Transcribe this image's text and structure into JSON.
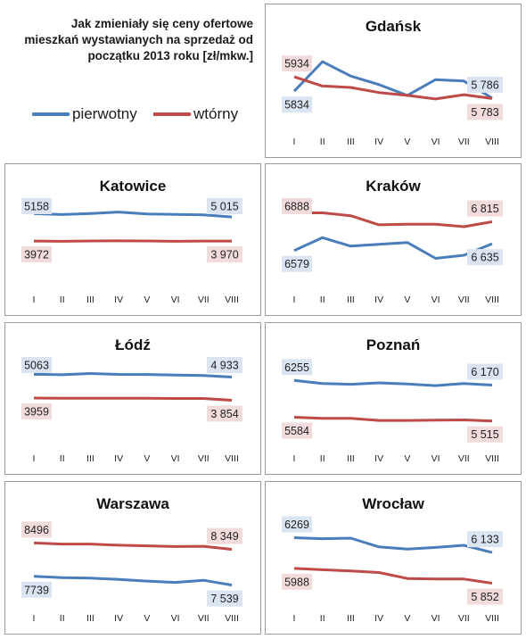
{
  "title": {
    "line1": "Jak zmieniały się ceny ofertowe",
    "line2": "mieszkań wystawianych na sprzedaż od",
    "line3": "początku 2013 roku [zł/mkw.]"
  },
  "legend": {
    "primary_label": "pierwotny",
    "secondary_label": "wtórny"
  },
  "colors": {
    "primary": "#4a7ebb",
    "secondary": "#be4b48",
    "primary_label_bg": "#dbe5f1",
    "secondary_label_bg": "#f2dcdb",
    "panel_border": "#9a9a9a"
  },
  "chart_data": [
    {
      "type": "line",
      "title": "Gdańsk",
      "categories": [
        "I",
        "II",
        "III",
        "IV",
        "V",
        "VI",
        "VII",
        "VIII"
      ],
      "series": [
        {
          "name": "pierwotny",
          "values": [
            5834,
            6040,
            5940,
            5880,
            5805,
            5915,
            5905,
            5786
          ]
        },
        {
          "name": "wtórny",
          "values": [
            5934,
            5870,
            5860,
            5825,
            5805,
            5780,
            5810,
            5783
          ]
        }
      ],
      "start_labels": {
        "pierwotny": "5834",
        "wtórny": "5934"
      },
      "end_labels": {
        "pierwotny": "5 786",
        "wtórny": "5 783"
      }
    },
    {
      "type": "line",
      "title": "Katowice",
      "categories": [
        "I",
        "II",
        "III",
        "IV",
        "V",
        "VI",
        "VII",
        "VIII"
      ],
      "series": [
        {
          "name": "pierwotny",
          "values": [
            5158,
            5120,
            5160,
            5225,
            5140,
            5125,
            5105,
            5015
          ]
        },
        {
          "name": "wtórny",
          "values": [
            3972,
            3960,
            3975,
            3978,
            3975,
            3960,
            3972,
            3970
          ]
        }
      ],
      "start_labels": {
        "pierwotny": "5158",
        "wtórny": "3972"
      },
      "end_labels": {
        "pierwotny": "5 015",
        "wtórny": "3 970"
      }
    },
    {
      "type": "line",
      "title": "Kraków",
      "categories": [
        "I",
        "II",
        "III",
        "IV",
        "V",
        "VI",
        "VII",
        "VIII"
      ],
      "series": [
        {
          "name": "pierwotny",
          "values": [
            6579,
            6685,
            6615,
            6630,
            6645,
            6515,
            6540,
            6635
          ]
        },
        {
          "name": "wtórny",
          "values": [
            6888,
            6888,
            6865,
            6790,
            6795,
            6795,
            6775,
            6815
          ]
        }
      ],
      "start_labels": {
        "pierwotny": "6579",
        "wtórny": "6888"
      },
      "end_labels": {
        "pierwotny": "6 635",
        "wtórny": "6 815"
      }
    },
    {
      "type": "line",
      "title": "Łódź",
      "categories": [
        "I",
        "II",
        "III",
        "IV",
        "V",
        "VI",
        "VII",
        "VIII"
      ],
      "series": [
        {
          "name": "pierwotny",
          "values": [
            5063,
            5040,
            5100,
            5060,
            5055,
            5030,
            5010,
            4933
          ]
        },
        {
          "name": "wtórny",
          "values": [
            3959,
            3950,
            3950,
            3950,
            3950,
            3935,
            3935,
            3854
          ]
        }
      ],
      "start_labels": {
        "pierwotny": "5063",
        "wtórny": "3959"
      },
      "end_labels": {
        "pierwotny": "4 933",
        "wtórny": "3 854"
      }
    },
    {
      "type": "line",
      "title": "Poznań",
      "categories": [
        "I",
        "II",
        "III",
        "IV",
        "V",
        "VI",
        "VII",
        "VIII"
      ],
      "series": [
        {
          "name": "pierwotny",
          "values": [
            6255,
            6200,
            6185,
            6210,
            6190,
            6160,
            6200,
            6170
          ]
        },
        {
          "name": "wtórny",
          "values": [
            5584,
            5565,
            5565,
            5525,
            5525,
            5530,
            5535,
            5515
          ]
        }
      ],
      "start_labels": {
        "pierwotny": "6255",
        "wtórny": "5584"
      },
      "end_labels": {
        "pierwotny": "6 170",
        "wtórny": "5 515"
      }
    },
    {
      "type": "line",
      "title": "Warszawa",
      "categories": [
        "I",
        "II",
        "III",
        "IV",
        "V",
        "VI",
        "VII",
        "VIII"
      ],
      "series": [
        {
          "name": "pierwotny",
          "values": [
            7739,
            7710,
            7700,
            7670,
            7630,
            7600,
            7650,
            7539
          ]
        },
        {
          "name": "wtórny",
          "values": [
            8496,
            8470,
            8470,
            8445,
            8430,
            8415,
            8420,
            8349
          ]
        }
      ],
      "start_labels": {
        "pierwotny": "7739",
        "wtórny": "8496"
      },
      "end_labels": {
        "pierwotny": "7 539",
        "wtórny": "8 349"
      }
    },
    {
      "type": "line",
      "title": "Wrocław",
      "categories": [
        "I",
        "II",
        "III",
        "IV",
        "V",
        "VI",
        "VII",
        "VIII"
      ],
      "series": [
        {
          "name": "pierwotny",
          "values": [
            6269,
            6260,
            6265,
            6185,
            6165,
            6180,
            6200,
            6133
          ]
        },
        {
          "name": "wtórny",
          "values": [
            5988,
            5975,
            5965,
            5950,
            5895,
            5890,
            5890,
            5852
          ]
        }
      ],
      "start_labels": {
        "pierwotny": "6269",
        "wtórny": "5988"
      },
      "end_labels": {
        "pierwotny": "6 133",
        "wtórny": "5 852"
      }
    }
  ]
}
